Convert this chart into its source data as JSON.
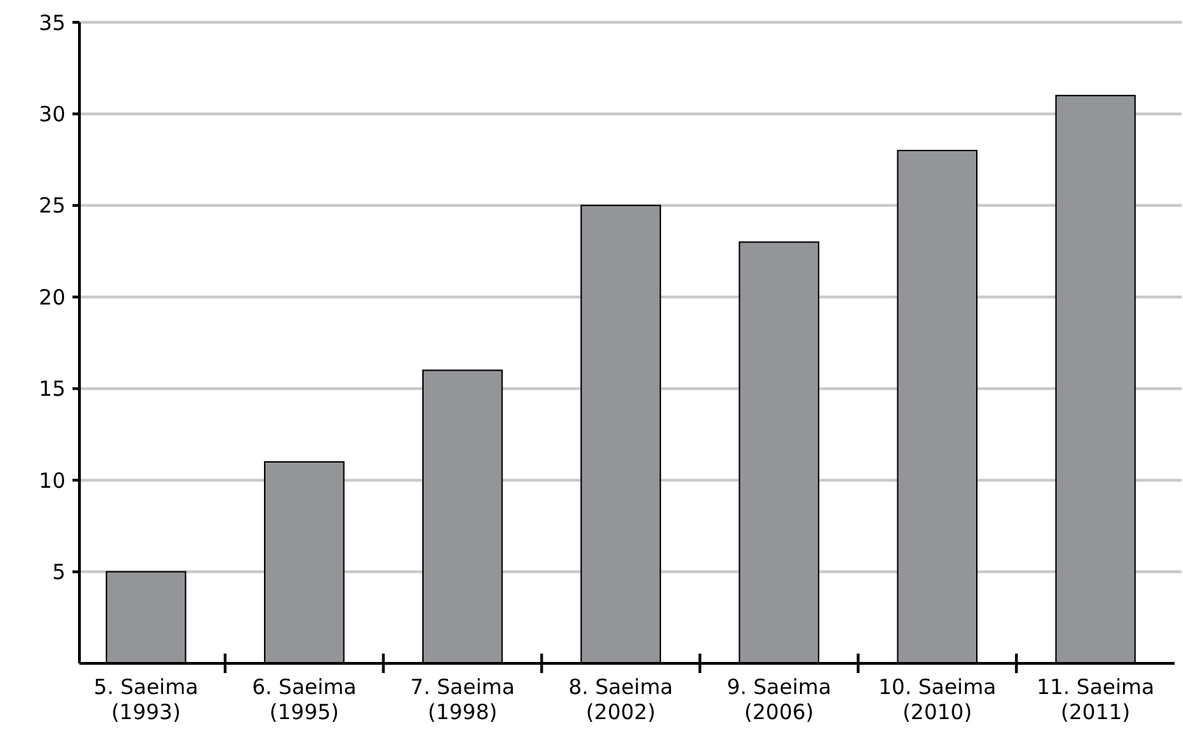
{
  "chart_data": {
    "type": "bar",
    "categories": [
      "5. Saeima\n(1993)",
      "6. Saeima\n(1995)",
      "7. Saeima\n(1998)",
      "8. Saeima\n(2002)",
      "9. Saeima\n(2006)",
      "10. Saeima\n(2010)",
      "11. Saeima\n(2011)"
    ],
    "values": [
      5,
      11,
      16,
      25,
      23,
      28,
      31
    ],
    "color": "#939598",
    "ylim": [
      0,
      35
    ],
    "yticks": [
      5,
      10,
      15,
      20,
      25,
      30,
      35
    ],
    "grid": "y"
  }
}
